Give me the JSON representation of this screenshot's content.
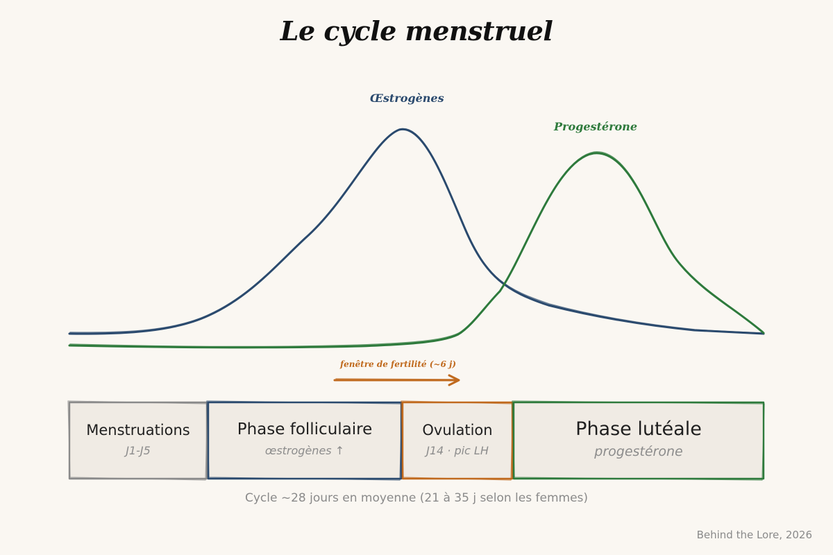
{
  "title": "Le cycle menstruel",
  "curves": {
    "oestrogens": {
      "label": "Œstrogènes",
      "color": "#2b4a6e"
    },
    "progesterone": {
      "label": "Progestérone",
      "color": "#2e7a3c"
    }
  },
  "fertility_window": {
    "label": "fenêtre de fertilité (~6 j)",
    "color": "#c06a1e"
  },
  "phases": [
    {
      "name": "Menstruations",
      "detail": "J1-J5",
      "color": "#8a8a8a"
    },
    {
      "name": "Phase folliculaire",
      "detail": "œstrogènes ↑",
      "color": "#2b4a6e"
    },
    {
      "name": "Ovulation",
      "detail": "J14 · pic LH",
      "color": "#c06a1e"
    },
    {
      "name": "Phase lutéale",
      "detail": "progestérone",
      "color": "#2e7a3c"
    }
  ],
  "footnote": "Cycle ~28 jours en moyenne (21 à 35 j selon les femmes)",
  "credit": "Behind the Lore, 2026"
}
